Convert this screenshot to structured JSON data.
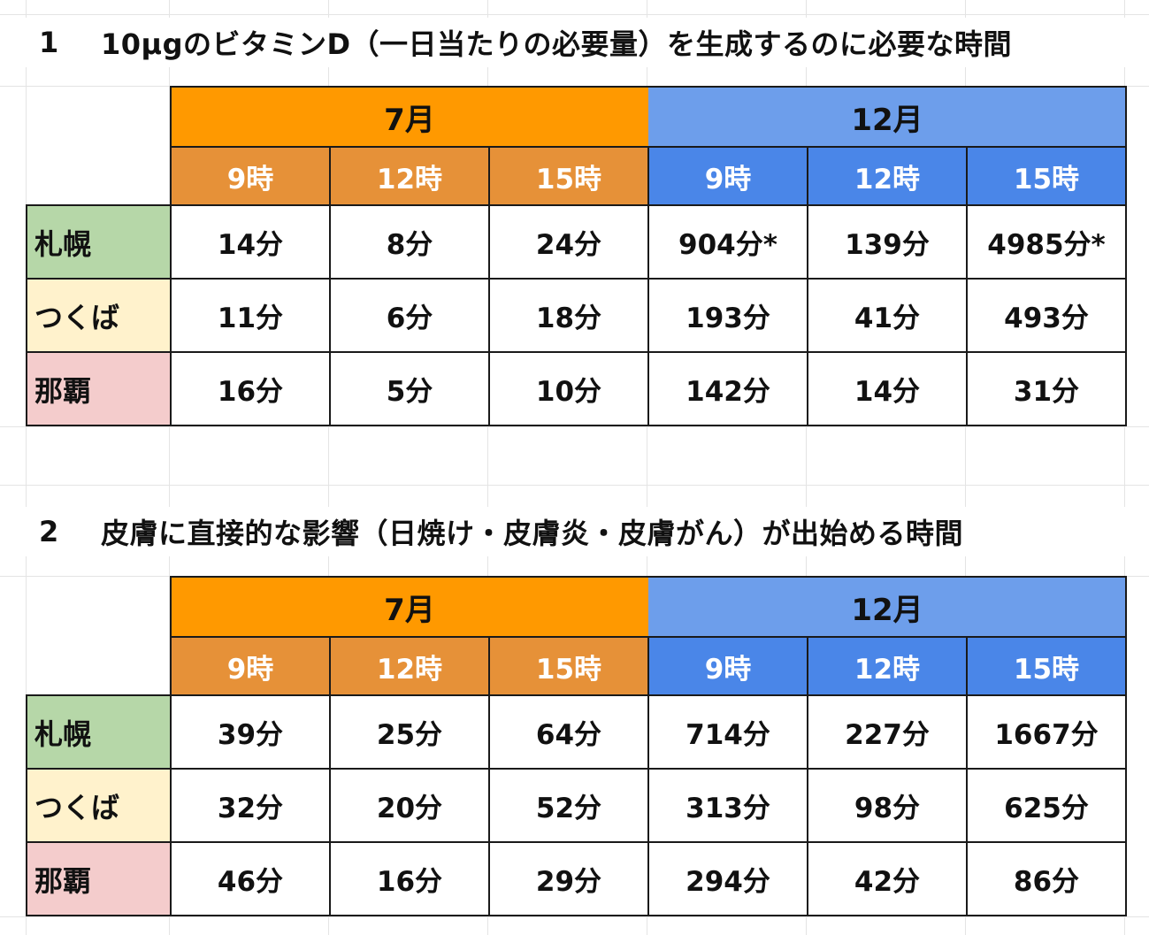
{
  "sections": [
    {
      "number": "1",
      "title": "10μgのビタミンD（一日当たりの必要量）を生成するのに必要な時間",
      "months": [
        "7月",
        "12月"
      ],
      "hours": [
        "9時",
        "12時",
        "15時",
        "9時",
        "12時",
        "15時"
      ],
      "rows": [
        {
          "city": "札幌",
          "values": [
            "14分",
            "8分",
            "24分",
            "904分*",
            "139分",
            "4985分*"
          ]
        },
        {
          "city": "つくば",
          "values": [
            "11分",
            "6分",
            "18分",
            "193分",
            "41分",
            "493分"
          ]
        },
        {
          "city": "那覇",
          "values": [
            "16分",
            "5分",
            "10分",
            "142分",
            "14分",
            "31分"
          ]
        }
      ]
    },
    {
      "number": "2",
      "title": "皮膚に直接的な影響（日焼け・皮膚炎・皮膚がん）が出始める時間",
      "months": [
        "7月",
        "12月"
      ],
      "hours": [
        "9時",
        "12時",
        "15時",
        "9時",
        "12時",
        "15時"
      ],
      "rows": [
        {
          "city": "札幌",
          "values": [
            "39分",
            "25分",
            "64分",
            "714分",
            "227分",
            "1667分"
          ]
        },
        {
          "city": "つくば",
          "values": [
            "32分",
            "20分",
            "52分",
            "313分",
            "98分",
            "625分"
          ]
        },
        {
          "city": "那覇",
          "values": [
            "46分",
            "16分",
            "29分",
            "294分",
            "42分",
            "86分"
          ]
        }
      ]
    }
  ],
  "colors": {
    "july_month": "#ff9900",
    "july_hour": "#e69138",
    "december_month": "#6d9eeb",
    "december_hour": "#4a86e8",
    "sapporo": "#b6d7a8",
    "tsukuba": "#fff2cc",
    "naha": "#f4cccc"
  }
}
